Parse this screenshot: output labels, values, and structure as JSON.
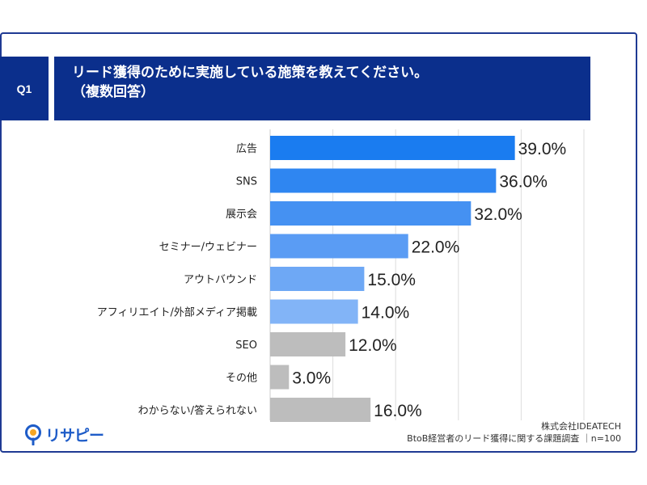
{
  "question": {
    "number": "Q1",
    "line1": "リード獲得のために実施している施策を教えてください。",
    "line2": "（複数回答）"
  },
  "chart_data": {
    "type": "bar",
    "orientation": "horizontal",
    "title": "",
    "xlabel": "",
    "ylabel": "",
    "xlim": [
      0,
      100
    ],
    "grid": true,
    "categories": [
      "広告",
      "SNS",
      "展示会",
      "セミナー/ウェビナー",
      "アウトバウンド",
      "アフィリエイト/外部メディア掲載",
      "SEO",
      "その他",
      "わからない/答えられない"
    ],
    "values": [
      39.0,
      36.0,
      32.0,
      22.0,
      15.0,
      14.0,
      12.0,
      3.0,
      16.0
    ],
    "value_labels": [
      "39.0%",
      "36.0%",
      "32.0%",
      "22.0%",
      "15.0%",
      "14.0%",
      "12.0%",
      "3.0%",
      "16.0%"
    ],
    "bar_colors": [
      "#1a7cf0",
      "#2f86f1",
      "#4591f2",
      "#5a9cf4",
      "#6ea8f5",
      "#82b4f7",
      "#bdbdbd",
      "#bdbdbd",
      "#bdbdbd"
    ]
  },
  "source": {
    "company": "株式会社IDEATECH",
    "survey": "BtoB経営者のリード獲得に関する課題調査 ｜n=100"
  },
  "logo": {
    "text": "リサピー",
    "icon": "pin-logo-icon",
    "color": "#1e5cc8"
  }
}
